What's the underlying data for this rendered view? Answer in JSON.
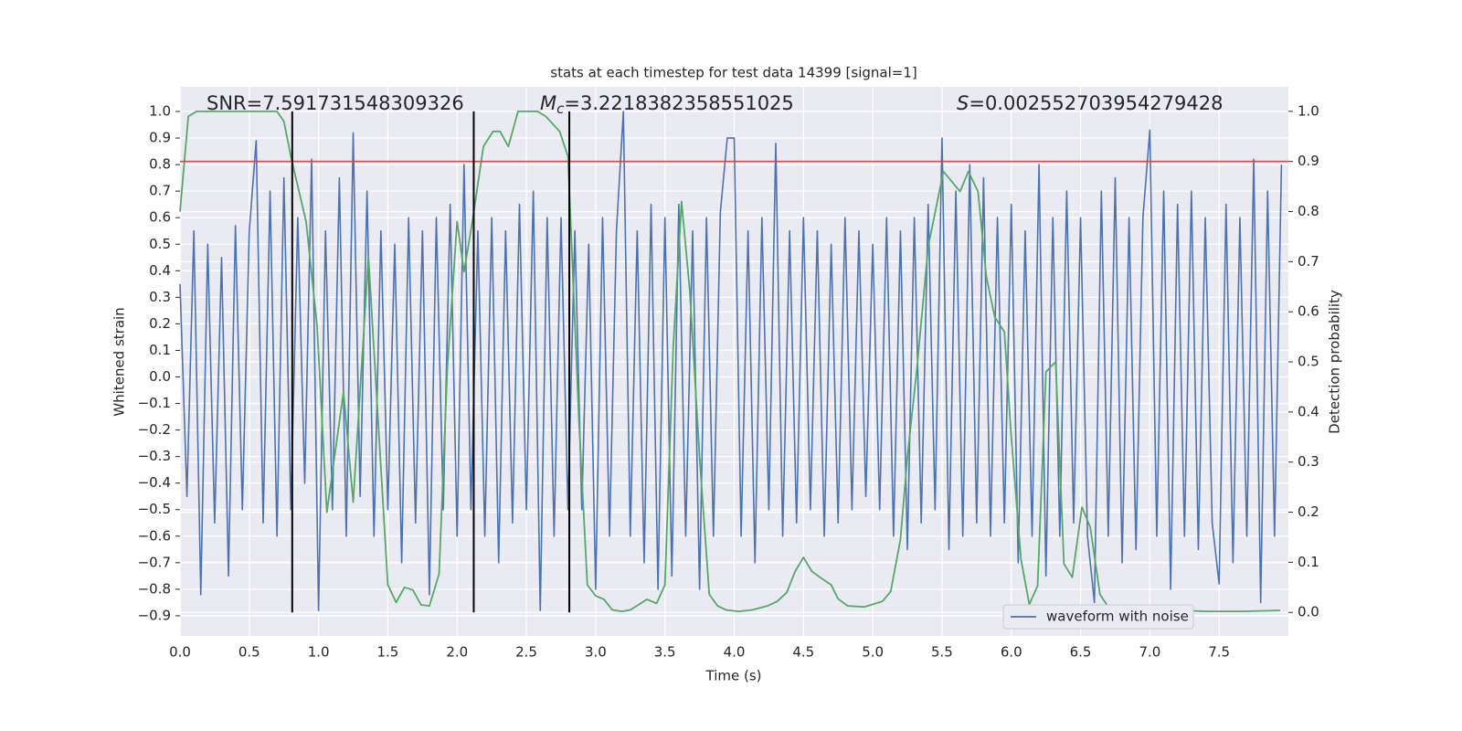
{
  "chart_data": {
    "type": "line",
    "title": "stats at each timestep for test data 14399 [signal=1]",
    "xlabel": "Time (s)",
    "ylabel": "Whitened strain",
    "y2label": "Detection probability",
    "xlim": [
      0,
      8
    ],
    "ylim": [
      -0.976,
      1.093
    ],
    "y2lim": [
      -0.047,
      1.049
    ],
    "xticks": [
      {
        "value": 0,
        "label": "0.0"
      },
      {
        "value": 0.5,
        "label": "0.5"
      },
      {
        "value": 1,
        "label": "1.0"
      },
      {
        "value": 1.5,
        "label": "1.5"
      },
      {
        "value": 2,
        "label": "2.0"
      },
      {
        "value": 2.5,
        "label": "2.5"
      },
      {
        "value": 3,
        "label": "3.0"
      },
      {
        "value": 3.5,
        "label": "3.5"
      },
      {
        "value": 4,
        "label": "4.0"
      },
      {
        "value": 4.5,
        "label": "4.5"
      },
      {
        "value": 5,
        "label": "5.0"
      },
      {
        "value": 5.5,
        "label": "5.5"
      },
      {
        "value": 6,
        "label": "6.0"
      },
      {
        "value": 6.5,
        "label": "6.5"
      },
      {
        "value": 7,
        "label": "7.0"
      },
      {
        "value": 7.5,
        "label": "7.5"
      }
    ],
    "yticks": [
      {
        "value": -0.9,
        "label": "−0.9"
      },
      {
        "value": -0.8,
        "label": "−0.8"
      },
      {
        "value": -0.7,
        "label": "−0.7"
      },
      {
        "value": -0.6,
        "label": "−0.6"
      },
      {
        "value": -0.5,
        "label": "−0.5"
      },
      {
        "value": -0.4,
        "label": "−0.4"
      },
      {
        "value": -0.3,
        "label": "−0.3"
      },
      {
        "value": -0.2,
        "label": "−0.2"
      },
      {
        "value": -0.1,
        "label": "−0.1"
      },
      {
        "value": 0,
        "label": "0.0"
      },
      {
        "value": 0.1,
        "label": "0.1"
      },
      {
        "value": 0.2,
        "label": "0.2"
      },
      {
        "value": 0.3,
        "label": "0.3"
      },
      {
        "value": 0.4,
        "label": "0.4"
      },
      {
        "value": 0.5,
        "label": "0.5"
      },
      {
        "value": 0.6,
        "label": "0.6"
      },
      {
        "value": 0.7,
        "label": "0.7"
      },
      {
        "value": 0.8,
        "label": "0.8"
      },
      {
        "value": 0.9,
        "label": "0.9"
      },
      {
        "value": 1,
        "label": "1.0"
      }
    ],
    "y2ticks": [
      {
        "value": 0,
        "label": "0.0"
      },
      {
        "value": 0.1,
        "label": "0.1"
      },
      {
        "value": 0.2,
        "label": "0.2"
      },
      {
        "value": 0.3,
        "label": "0.3"
      },
      {
        "value": 0.4,
        "label": "0.4"
      },
      {
        "value": 0.5,
        "label": "0.5"
      },
      {
        "value": 0.6,
        "label": "0.6"
      },
      {
        "value": 0.7,
        "label": "0.7"
      },
      {
        "value": 0.8,
        "label": "0.8"
      },
      {
        "value": 0.9,
        "label": "0.9"
      },
      {
        "value": 1,
        "label": "1.0"
      }
    ],
    "grid": true,
    "legend": "lower right",
    "series": [
      {
        "name": "waveform with noise",
        "color": "#4c72b0",
        "x": [
          0,
          0.05,
          0.1,
          0.15,
          0.2,
          0.25,
          0.3,
          0.35,
          0.4,
          0.45,
          0.5,
          0.55,
          0.6,
          0.65,
          0.7,
          0.75,
          0.8,
          0.85,
          0.9,
          0.95,
          1,
          1.05,
          1.1,
          1.15,
          1.2,
          1.25,
          1.3,
          1.35,
          1.4,
          1.45,
          1.5,
          1.55,
          1.6,
          1.65,
          1.7,
          1.75,
          1.8,
          1.85,
          1.9,
          1.95,
          2,
          2.05,
          2.1,
          2.15,
          2.2,
          2.25,
          2.3,
          2.35,
          2.4,
          2.45,
          2.5,
          2.55,
          2.6,
          2.65,
          2.7,
          2.75,
          2.8,
          2.85,
          2.9,
          2.95,
          3,
          3.05,
          3.1,
          3.15,
          3.2,
          3.25,
          3.3,
          3.35,
          3.4,
          3.45,
          3.5,
          3.55,
          3.6,
          3.65,
          3.7,
          3.75,
          3.8,
          3.85,
          3.9,
          3.95,
          4,
          4.05,
          4.1,
          4.15,
          4.2,
          4.25,
          4.3,
          4.35,
          4.4,
          4.45,
          4.5,
          4.55,
          4.6,
          4.65,
          4.7,
          4.75,
          4.8,
          4.85,
          4.9,
          4.95,
          5,
          5.05,
          5.1,
          5.15,
          5.2,
          5.25,
          5.3,
          5.35,
          5.4,
          5.45,
          5.5,
          5.55,
          5.6,
          5.65,
          5.7,
          5.75,
          5.8,
          5.85,
          5.9,
          5.95,
          6,
          6.05,
          6.1,
          6.15,
          6.2,
          6.25,
          6.3,
          6.35,
          6.4,
          6.45,
          6.5,
          6.55,
          6.6,
          6.65,
          6.7,
          6.75,
          6.8,
          6.85,
          6.9,
          6.95,
          7,
          7.05,
          7.1,
          7.15,
          7.2,
          7.25,
          7.3,
          7.35,
          7.4,
          7.45,
          7.5,
          7.55,
          7.6,
          7.65,
          7.7,
          7.75,
          7.8,
          7.85,
          7.9,
          7.95
        ],
        "values": [
          0.35,
          -0.45,
          0.55,
          -0.82,
          0.5,
          -0.55,
          0.45,
          -0.75,
          0.57,
          -0.5,
          0.55,
          0.89,
          -0.55,
          0.7,
          -0.6,
          0.75,
          -0.5,
          0.6,
          -0.4,
          0.82,
          -0.88,
          0.55,
          -0.5,
          0.75,
          -0.6,
          0.92,
          -0.45,
          0.7,
          -0.6,
          0.55,
          -0.5,
          0.5,
          -0.7,
          0.6,
          -0.55,
          0.55,
          -0.82,
          0.6,
          -0.5,
          0.65,
          -0.6,
          0.8,
          -0.5,
          0.55,
          -0.6,
          0.6,
          -0.7,
          0.55,
          -0.55,
          0.65,
          -0.5,
          0.7,
          -0.88,
          0.6,
          -0.6,
          0.6,
          -0.5,
          0.55,
          -0.5,
          0.5,
          -0.8,
          0.6,
          -0.6,
          0.55,
          1.0,
          -0.6,
          0.55,
          -0.7,
          0.65,
          -0.8,
          0.6,
          -0.75,
          0.65,
          -0.6,
          0.55,
          -0.8,
          0.6,
          -0.6,
          0.62,
          0.9,
          0.9,
          -0.6,
          0.55,
          -0.7,
          0.6,
          -0.5,
          0.88,
          -0.6,
          0.55,
          -0.55,
          0.6,
          -0.5,
          0.55,
          -0.6,
          0.5,
          -0.55,
          0.6,
          -0.5,
          0.55,
          -0.45,
          0.5,
          -0.5,
          0.6,
          -0.6,
          0.55,
          -0.65,
          0.6,
          -0.55,
          0.65,
          -0.5,
          0.9,
          -0.65,
          0.7,
          -0.6,
          0.8,
          -0.55,
          0.75,
          -0.6,
          0.6,
          -0.55,
          0.65,
          -0.7,
          0.55,
          -0.6,
          0.8,
          -0.75,
          0.6,
          -0.6,
          0.7,
          -0.55,
          0.6,
          -0.6,
          -0.85,
          0.7,
          -0.6,
          0.75,
          -0.7,
          0.6,
          -0.65,
          0.6,
          0.93,
          -0.6,
          0.7,
          -0.8,
          0.65,
          -0.6,
          0.7,
          -0.65,
          0.6,
          -0.55,
          -0.78,
          0.65,
          -0.7,
          0.6,
          -0.6,
          0.82,
          -0.85,
          0.7,
          -0.6,
          0.8
        ]
      },
      {
        "color": "#55a868",
        "axis": "y2",
        "x": [
          0,
          0.06,
          0.12,
          0.7,
          0.75,
          0.8,
          0.91,
          0.99,
          1.06,
          1.18,
          1.25,
          1.36,
          1.5,
          1.56,
          1.62,
          1.68,
          1.74,
          1.8,
          1.87,
          1.93,
          2.0,
          2.05,
          2.11,
          2.19,
          2.26,
          2.31,
          2.37,
          2.44,
          2.51,
          2.58,
          2.64,
          2.74,
          2.8,
          2.88,
          2.94,
          3.0,
          3.06,
          3.12,
          3.19,
          3.25,
          3.37,
          3.44,
          3.5,
          3.56,
          3.62,
          3.68,
          3.75,
          3.82,
          3.88,
          3.94,
          4.03,
          4.13,
          4.24,
          4.31,
          4.38,
          4.44,
          4.5,
          4.56,
          4.62,
          4.7,
          4.75,
          4.82,
          4.94,
          5.07,
          5.13,
          5.2,
          5.25,
          5.32,
          5.4,
          5.51,
          5.63,
          5.69,
          5.76,
          5.82,
          5.88,
          5.95,
          6.0,
          6.07,
          6.13,
          6.19,
          6.25,
          6.32,
          6.38,
          6.44,
          6.51,
          6.57,
          6.64,
          6.7,
          6.88,
          7.08,
          7.21,
          7.41,
          7.67,
          7.94
        ],
        "values": [
          0.8,
          0.99,
          1.0,
          1.0,
          0.98,
          0.91,
          0.78,
          0.57,
          0.2,
          0.44,
          0.22,
          0.71,
          0.055,
          0.02,
          0.05,
          0.045,
          0.015,
          0.013,
          0.077,
          0.49,
          0.78,
          0.68,
          0.78,
          0.93,
          0.96,
          0.96,
          0.93,
          1.0,
          1.0,
          1.0,
          0.99,
          0.96,
          0.91,
          0.38,
          0.055,
          0.033,
          0.026,
          0.005,
          0.002,
          0.005,
          0.026,
          0.018,
          0.055,
          0.53,
          0.82,
          0.64,
          0.31,
          0.036,
          0.013,
          0.005,
          0.002,
          0.005,
          0.013,
          0.022,
          0.04,
          0.082,
          0.11,
          0.082,
          0.07,
          0.055,
          0.027,
          0.013,
          0.011,
          0.022,
          0.042,
          0.146,
          0.31,
          0.49,
          0.73,
          0.88,
          0.84,
          0.88,
          0.84,
          0.67,
          0.59,
          0.56,
          0.35,
          0.106,
          0.016,
          0.053,
          0.48,
          0.5,
          0.097,
          0.07,
          0.21,
          0.17,
          0.036,
          0.011,
          0.002,
          0.002,
          0.004,
          0.002,
          0.002,
          0.004
        ]
      }
    ],
    "hline": {
      "y": 0.9,
      "axis": "y2",
      "color": "#c44e52"
    },
    "vlines": {
      "x": [
        0.81,
        2.12,
        2.81
      ],
      "ymin": 0,
      "ymax": 1,
      "axis": "y2",
      "color": "#000000"
    },
    "annotations": [
      {
        "text": "SNR=7.591731548309326"
      },
      {
        "symbol": "M",
        "subscript": "c",
        "text": "=3.2218382358551025"
      },
      {
        "symbol": "S",
        "text": "=0.002552703954279428"
      }
    ]
  }
}
